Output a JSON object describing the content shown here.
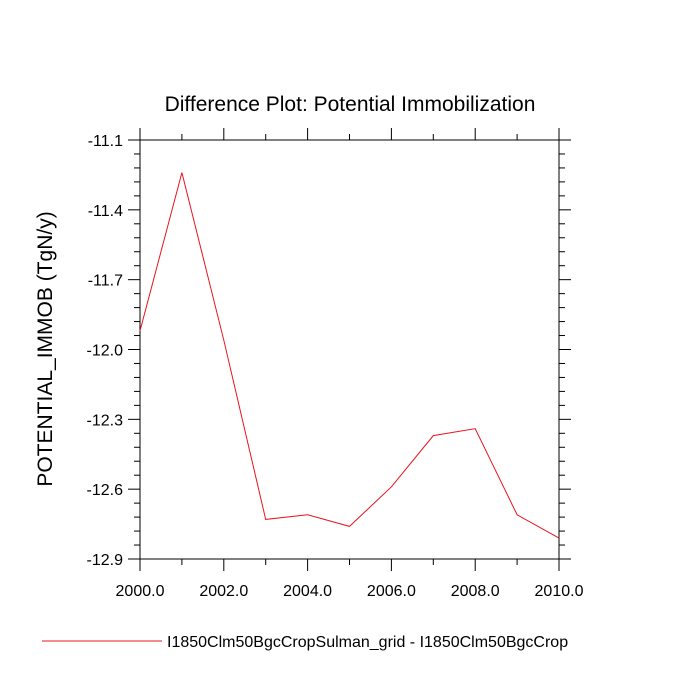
{
  "chart_data": {
    "type": "line",
    "title": "Difference Plot: Potential Immobilization",
    "xlabel": "",
    "ylabel": "POTENTIAL_IMMOB  (TgN/y)",
    "xlim": [
      2000,
      2010
    ],
    "ylim": [
      -12.9,
      -11.1
    ],
    "xticks": [
      2000,
      2002,
      2004,
      2006,
      2008,
      2010
    ],
    "xtick_labels": [
      "2000.0",
      "2002.0",
      "2004.0",
      "2006.0",
      "2008.0",
      "2010.0"
    ],
    "yticks": [
      -11.1,
      -11.4,
      -11.7,
      -12.0,
      -12.3,
      -12.6,
      -12.9
    ],
    "ytick_labels": [
      "-11.1",
      "-11.4",
      "-11.7",
      "-12.0",
      "-12.3",
      "-12.6",
      "-12.9"
    ],
    "grid": false,
    "legend_position": "bottom",
    "series": [
      {
        "name": "I1850Clm50BgcCropSulman_grid - I1850Clm50BgcCrop",
        "color": "#e8141e",
        "x": [
          2000,
          2001,
          2002,
          2003,
          2004,
          2005,
          2006,
          2007,
          2008,
          2009,
          2010
        ],
        "y": [
          -11.92,
          -11.24,
          -11.96,
          -12.73,
          -12.71,
          -12.76,
          -12.59,
          -12.37,
          -12.34,
          -12.71,
          -12.81
        ]
      }
    ]
  }
}
